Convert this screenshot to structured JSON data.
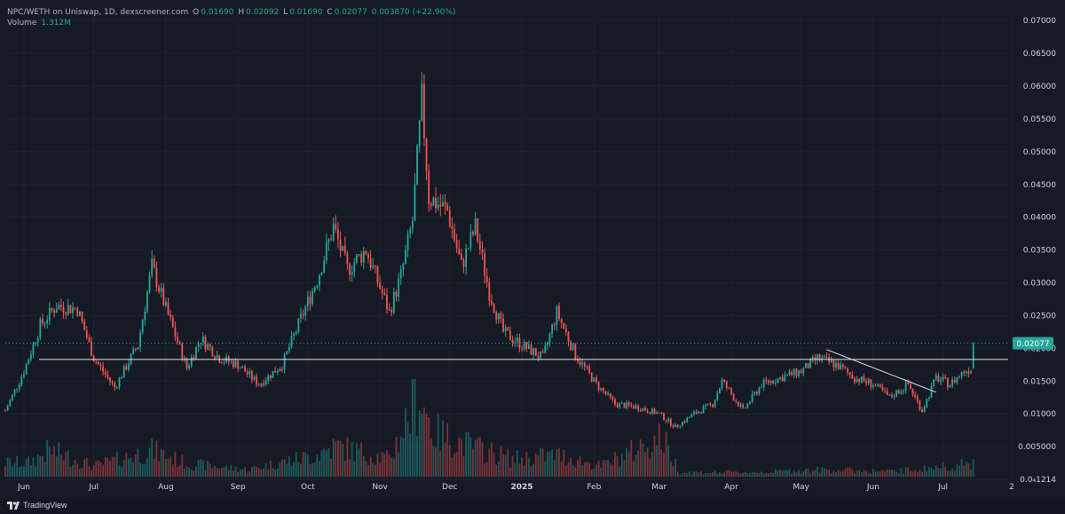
{
  "header": {
    "pair": "NPC/WETH on Uniswap, 1D, dexscreener.com",
    "o_label": "O",
    "o_value": "0.01690",
    "h_label": "H",
    "h_value": "0.02092",
    "l_label": "L",
    "l_value": "0.01690",
    "c_label": "C",
    "c_value": "0.02077",
    "change": "0.003870 (+22.90%)",
    "volume_label": "Volume",
    "volume_value": "1.312M"
  },
  "footer": {
    "brand": "TradingView"
  },
  "colors": {
    "up": "#26a69a",
    "down": "#ef5350",
    "background": "#161a25",
    "axis_text": "#d1d4dc",
    "grid": "#1f2431"
  },
  "chart_data": {
    "type": "candlestick",
    "x_axis": {
      "tick_labels": [
        "Jun",
        "Jul",
        "Aug",
        "Sep",
        "Oct",
        "Nov",
        "Dec",
        "2025",
        "Feb",
        "Mar",
        "Apr",
        "May",
        "Jun",
        "Jul",
        "2"
      ]
    },
    "y_axis": {
      "ylim": [
        0,
        0.0707
      ],
      "tick_labels": [
        "0.07000",
        "0.06500",
        "0.06000",
        "0.05500",
        "0.05000",
        "0.04500",
        "0.04000",
        "0.03500",
        "0.03000",
        "0.02500",
        "0.02000",
        "0.01500",
        "0.01000",
        "0.005000",
        "0.0₄1214"
      ],
      "tick_values": [
        0.07,
        0.065,
        0.06,
        0.055,
        0.05,
        0.045,
        0.04,
        0.035,
        0.03,
        0.025,
        0.02,
        0.015,
        0.01,
        0.005,
        0
      ]
    },
    "last_price": {
      "label": "0.02077",
      "value": 0.02077
    },
    "anchors": [
      [
        "2024-05-24",
        0.0105
      ],
      [
        "2024-06-01",
        0.0165
      ],
      [
        "2024-06-08",
        0.0235
      ],
      [
        "2024-06-15",
        0.0265
      ],
      [
        "2024-06-24",
        0.026
      ],
      [
        "2024-07-01",
        0.0185
      ],
      [
        "2024-07-10",
        0.014
      ],
      [
        "2024-07-20",
        0.0205
      ],
      [
        "2024-07-26",
        0.0325
      ],
      [
        "2024-08-01",
        0.026
      ],
      [
        "2024-08-10",
        0.017
      ],
      [
        "2024-08-16",
        0.0215
      ],
      [
        "2024-08-24",
        0.0185
      ],
      [
        "2024-09-01",
        0.0175
      ],
      [
        "2024-09-10",
        0.0145
      ],
      [
        "2024-09-20",
        0.0175
      ],
      [
        "2024-09-28",
        0.0245
      ],
      [
        "2024-10-05",
        0.0305
      ],
      [
        "2024-10-12",
        0.0385
      ],
      [
        "2024-10-18",
        0.032
      ],
      [
        "2024-10-26",
        0.035
      ],
      [
        "2024-11-05",
        0.0255
      ],
      [
        "2024-11-10",
        0.031
      ],
      [
        "2024-11-15",
        0.0395
      ],
      [
        "2024-11-19",
        0.058
      ],
      [
        "2024-11-22",
        0.043
      ],
      [
        "2024-11-30",
        0.041
      ],
      [
        "2024-12-06",
        0.0325
      ],
      [
        "2024-12-12",
        0.0385
      ],
      [
        "2024-12-18",
        0.0285
      ],
      [
        "2024-12-24",
        0.0225
      ],
      [
        "2025-01-01",
        0.0205
      ],
      [
        "2025-01-10",
        0.0185
      ],
      [
        "2025-01-16",
        0.0255
      ],
      [
        "2025-01-24",
        0.019
      ],
      [
        "2025-02-02",
        0.0145
      ],
      [
        "2025-02-10",
        0.0115
      ],
      [
        "2025-02-20",
        0.011
      ],
      [
        "2025-03-01",
        0.01
      ],
      [
        "2025-03-08",
        0.008
      ],
      [
        "2025-03-16",
        0.01
      ],
      [
        "2025-03-24",
        0.0115
      ],
      [
        "2025-03-28",
        0.015
      ],
      [
        "2025-04-06",
        0.0105
      ],
      [
        "2025-04-14",
        0.0145
      ],
      [
        "2025-04-22",
        0.0155
      ],
      [
        "2025-05-01",
        0.0165
      ],
      [
        "2025-05-08",
        0.0185
      ],
      [
        "2025-05-16",
        0.0175
      ],
      [
        "2025-05-24",
        0.0155
      ],
      [
        "2025-06-01",
        0.0145
      ],
      [
        "2025-06-08",
        0.0125
      ],
      [
        "2025-06-16",
        0.0145
      ],
      [
        "2025-06-22",
        0.0105
      ],
      [
        "2025-06-28",
        0.0155
      ],
      [
        "2025-07-04",
        0.0145
      ],
      [
        "2025-07-10",
        0.0165
      ],
      [
        "2025-07-13",
        0.0169
      ],
      [
        "2025-07-14",
        0.0208
      ]
    ],
    "volume": [
      [
        "2024-06-03",
        0.16
      ],
      [
        "2024-06-12",
        0.3
      ],
      [
        "2024-07-01",
        0.12
      ],
      [
        "2024-07-26",
        0.3
      ],
      [
        "2024-08-10",
        0.15
      ],
      [
        "2024-09-05",
        0.08
      ],
      [
        "2024-10-05",
        0.25
      ],
      [
        "2024-10-13",
        0.35
      ],
      [
        "2024-11-05",
        0.2
      ],
      [
        "2024-11-16",
        0.85
      ],
      [
        "2024-11-18",
        0.95
      ],
      [
        "2024-11-24",
        0.5
      ],
      [
        "2024-12-10",
        0.35
      ],
      [
        "2024-12-28",
        0.2
      ],
      [
        "2025-01-16",
        0.25
      ],
      [
        "2025-02-04",
        0.12
      ],
      [
        "2025-03-02",
        0.45
      ],
      [
        "2025-03-10",
        0.05
      ],
      [
        "2025-04-10",
        0.05
      ],
      [
        "2025-05-10",
        0.08
      ],
      [
        "2025-06-10",
        0.06
      ],
      [
        "2025-07-14",
        0.15
      ]
    ],
    "horizontal_line": {
      "value": 0.0183
    },
    "trend_line": {
      "points": [
        [
          "2025-05-12",
          0.0198
        ],
        [
          "2025-06-28",
          0.0133
        ]
      ]
    },
    "price_line": {
      "value": 0.02077
    }
  }
}
